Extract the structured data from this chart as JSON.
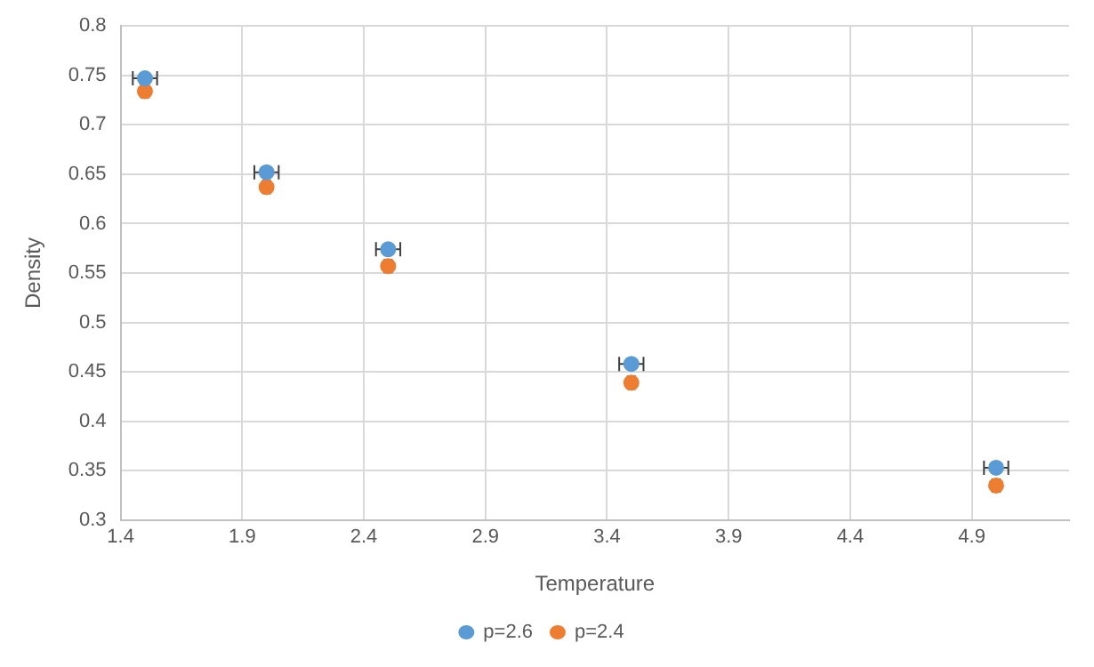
{
  "chart_data": {
    "type": "scatter",
    "xlabel": "Temperature",
    "ylabel": "Density",
    "x": [
      1.5,
      2.0,
      2.5,
      3.5,
      5.0
    ],
    "series": [
      {
        "name": "p=2.6",
        "color": "#5b9bd5",
        "values": [
          0.747,
          0.652,
          0.574,
          0.458,
          0.353
        ],
        "xerrors": [
          0.05,
          0.05,
          0.05,
          0.05,
          0.05
        ]
      },
      {
        "name": "p=2.4",
        "color": "#ed7d31",
        "values": [
          0.734,
          0.637,
          0.557,
          0.439,
          0.335
        ],
        "xerrors": [
          0.015,
          0.015,
          0.015,
          0.015,
          0.015
        ]
      }
    ],
    "xlim": [
      1.4,
      5.3
    ],
    "xticks": [
      1.4,
      1.9,
      2.4,
      2.9,
      3.4,
      3.9,
      4.4,
      4.9
    ],
    "ylim": [
      0.3,
      0.8
    ],
    "yticks": [
      0.3,
      0.35,
      0.4,
      0.45,
      0.5,
      0.55,
      0.6,
      0.65,
      0.7,
      0.75,
      0.8
    ],
    "grid": true,
    "legend": "bottom",
    "marker": "circle"
  }
}
